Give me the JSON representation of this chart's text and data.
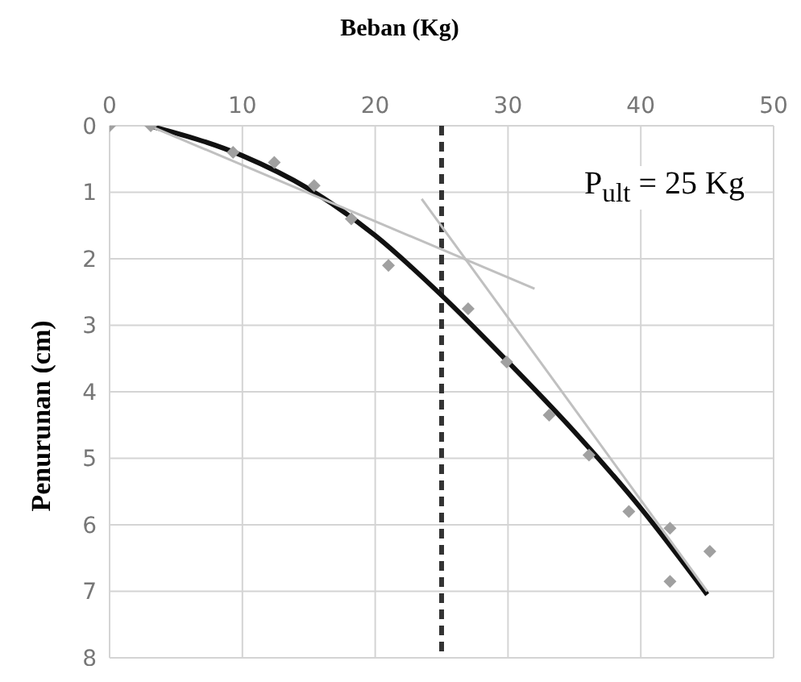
{
  "chart_data": {
    "type": "scatter",
    "xlabel": "Beban (Kg)",
    "ylabel": "Penurunan (cm)",
    "xlim": [
      0,
      50
    ],
    "xticks": [
      0,
      10,
      20,
      30,
      40,
      50
    ],
    "ylim": [
      8,
      0
    ],
    "yticks": [
      0,
      1,
      2,
      3,
      4,
      5,
      6,
      7,
      8
    ],
    "grid": true,
    "marker": "diamond",
    "series": [
      {
        "color": "#a0a0a0",
        "x": [
          0,
          3.1,
          9.3,
          12.4,
          15.4,
          18.2,
          21,
          27,
          29.9,
          33.1,
          36.1,
          39.1,
          42.2,
          42.2,
          45.2
        ],
        "values": [
          0,
          0,
          0.4,
          0.55,
          0.9,
          1.4,
          2.1,
          2.75,
          3.55,
          4.35,
          4.95,
          5.8,
          6.05,
          6.85,
          6.4
        ]
      },
      {
        "type": "line",
        "color": "#111111",
        "marker": "none",
        "x": [
          3,
          10,
          15,
          20,
          25,
          30,
          35,
          40,
          45
        ],
        "values": [
          0,
          0.45,
          0.95,
          1.65,
          2.55,
          3.55,
          4.6,
          5.75,
          7.05
        ]
      },
      {
        "type": "line",
        "color": "#c0c0c0",
        "marker": "none",
        "x": [
          3,
          32
        ],
        "values": [
          0,
          2.45
        ]
      },
      {
        "type": "line",
        "color": "#c0c0c0",
        "marker": "none",
        "x": [
          23.5,
          45
        ],
        "values": [
          1.1,
          7
        ]
      }
    ],
    "ref_lines": [
      {
        "axis": "x",
        "value": 25,
        "color": "#333333",
        "line_style": "dashed"
      }
    ],
    "annotations": [
      "P$_{ult}$ = 25 Kg"
    ]
  }
}
